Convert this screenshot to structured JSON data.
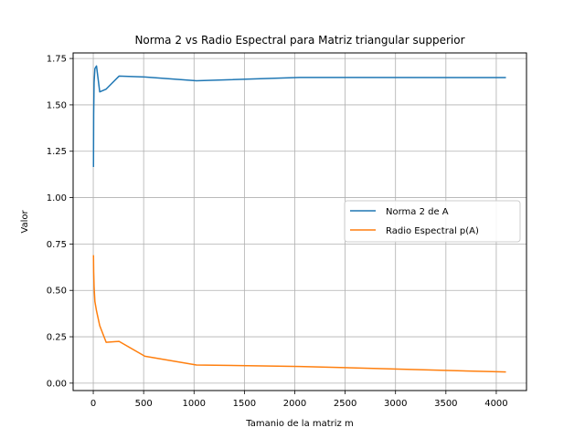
{
  "chart_data": {
    "type": "line",
    "title": "Norma 2 vs Radio Espectral para Matriz triangular supperior",
    "xlabel": "Tamanio de la matriz m",
    "ylabel": "Valor",
    "xlim": [
      -200,
      4300
    ],
    "ylim": [
      -0.04,
      1.78
    ],
    "x_ticks": [
      0,
      500,
      1000,
      1500,
      2000,
      2500,
      3000,
      3500,
      4000
    ],
    "y_ticks": [
      0.0,
      0.25,
      0.5,
      0.75,
      1.0,
      1.25,
      1.5,
      1.75
    ],
    "x_tick_labels": [
      "0",
      "500",
      "1000",
      "1500",
      "2000",
      "2500",
      "3000",
      "3500",
      "4000"
    ],
    "y_tick_labels": [
      "0.00",
      "0.25",
      "0.50",
      "0.75",
      "1.00",
      "1.25",
      "1.50",
      "1.75"
    ],
    "grid": true,
    "legend_position": "center-right",
    "x": [
      2,
      4,
      8,
      16,
      32,
      64,
      128,
      256,
      512,
      1024,
      2048,
      4096
    ],
    "series": [
      {
        "name": "Norma 2 de A",
        "color": "#1f77b4",
        "values": [
          1.165,
          1.45,
          1.62,
          1.695,
          1.71,
          1.57,
          1.585,
          1.655,
          1.65,
          1.63,
          1.648,
          1.647
        ]
      },
      {
        "name": "Radio Espectral p(A)",
        "color": "#ff7f0e",
        "values": [
          0.69,
          0.6,
          0.52,
          0.44,
          0.39,
          0.31,
          0.22,
          0.225,
          0.145,
          0.098,
          0.09,
          0.06
        ]
      }
    ]
  }
}
